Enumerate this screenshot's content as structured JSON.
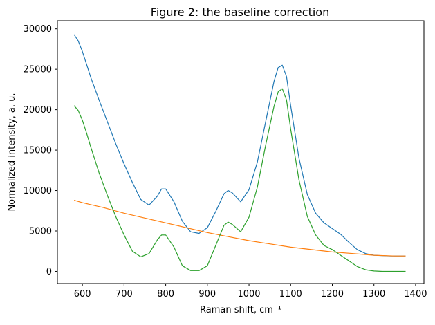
{
  "chart_data": {
    "type": "line",
    "title": "Figure 2: the baseline correction",
    "xlabel": "Raman shift, cm⁻¹",
    "ylabel": "Normalized intensity, a. u.",
    "xlim": [
      540,
      1420
    ],
    "ylim": [
      -1500,
      31000
    ],
    "xticks": [
      600,
      700,
      800,
      900,
      1000,
      1100,
      1200,
      1300,
      1400
    ],
    "yticks": [
      0,
      5000,
      10000,
      15000,
      20000,
      25000,
      30000
    ],
    "grid": false,
    "legend": "none",
    "series": [
      {
        "color": "#1f77b4",
        "x": [
          580,
          590,
          600,
          610,
          620,
          640,
          660,
          680,
          700,
          720,
          740,
          760,
          780,
          790,
          800,
          820,
          840,
          860,
          880,
          900,
          920,
          940,
          950,
          960,
          980,
          1000,
          1020,
          1040,
          1060,
          1070,
          1080,
          1090,
          1100,
          1120,
          1140,
          1160,
          1180,
          1200,
          1220,
          1240,
          1260,
          1280,
          1300,
          1320,
          1340,
          1360,
          1376
        ],
        "y": [
          29300,
          28500,
          27200,
          25600,
          24000,
          21200,
          18500,
          15800,
          13300,
          11000,
          8900,
          8200,
          9300,
          10200,
          10200,
          8600,
          6200,
          4900,
          4700,
          5400,
          7400,
          9600,
          10000,
          9700,
          8600,
          10100,
          13500,
          18500,
          23500,
          25200,
          25500,
          24100,
          20500,
          14000,
          9500,
          7200,
          6000,
          5300,
          4600,
          3600,
          2700,
          2200,
          2000,
          1950,
          1900,
          1900,
          1900
        ]
      },
      {
        "color": "#ff7f0e",
        "x": [
          580,
          600,
          650,
          700,
          750,
          800,
          850,
          900,
          950,
          1000,
          1050,
          1100,
          1150,
          1200,
          1250,
          1300,
          1350,
          1376
        ],
        "y": [
          8800,
          8500,
          7900,
          7200,
          6600,
          6000,
          5400,
          4800,
          4300,
          3800,
          3400,
          3000,
          2700,
          2400,
          2200,
          2000,
          1900,
          1900
        ]
      },
      {
        "color": "#2ca02c",
        "x": [
          580,
          590,
          600,
          610,
          620,
          640,
          660,
          680,
          700,
          720,
          740,
          760,
          780,
          790,
          800,
          820,
          840,
          860,
          880,
          900,
          920,
          940,
          950,
          960,
          980,
          1000,
          1020,
          1040,
          1060,
          1070,
          1080,
          1090,
          1100,
          1120,
          1140,
          1160,
          1180,
          1200,
          1220,
          1240,
          1260,
          1280,
          1300,
          1320,
          1340,
          1360,
          1376
        ],
        "y": [
          20500,
          19900,
          18700,
          17100,
          15400,
          12200,
          9400,
          6800,
          4500,
          2500,
          1800,
          2200,
          3900,
          4500,
          4500,
          3000,
          700,
          100,
          100,
          700,
          3200,
          5700,
          6100,
          5800,
          4900,
          6700,
          10400,
          15600,
          20400,
          22200,
          22600,
          21200,
          17600,
          11300,
          6800,
          4500,
          3200,
          2700,
          2000,
          1300,
          600,
          200,
          50,
          0,
          0,
          0,
          0
        ]
      }
    ]
  }
}
